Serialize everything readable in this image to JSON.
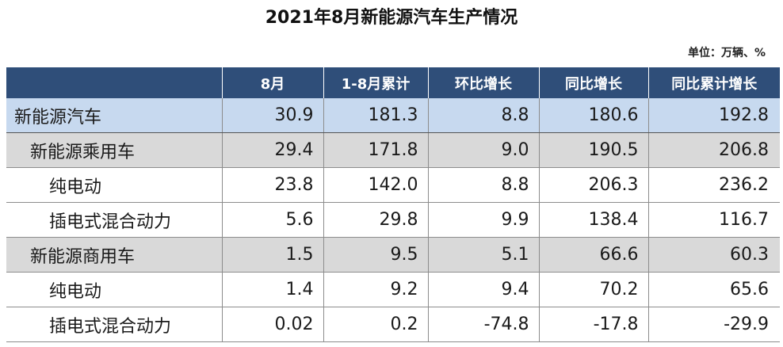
{
  "title": "2021年8月新能源汽车生产情况",
  "unit_note": "单位：万辆、%",
  "table": {
    "headers": [
      "",
      "8月",
      "1-8月累计",
      "环比增长",
      "同比增长",
      "同比累计增长"
    ],
    "rows": [
      {
        "label": "新能源汽车",
        "values": [
          "30.9",
          "181.3",
          "8.8",
          "180.6",
          "192.8"
        ]
      },
      {
        "label": "新能源乘用车",
        "values": [
          "29.4",
          "171.8",
          "9.0",
          "190.5",
          "206.8"
        ]
      },
      {
        "label": "纯电动",
        "values": [
          "23.8",
          "142.0",
          "8.8",
          "206.3",
          "236.2"
        ]
      },
      {
        "label": "插电式混合动力",
        "values": [
          "5.6",
          "29.8",
          "9.9",
          "138.4",
          "116.7"
        ]
      },
      {
        "label": "新能源商用车",
        "values": [
          "1.5",
          "9.5",
          "5.1",
          "66.6",
          "60.3"
        ]
      },
      {
        "label": "纯电动",
        "values": [
          "1.4",
          "9.2",
          "9.4",
          "70.2",
          "65.6"
        ]
      },
      {
        "label": "插电式混合动力",
        "values": [
          "0.02",
          "0.2",
          "-74.8",
          "-17.8",
          "-29.9"
        ]
      }
    ]
  }
}
